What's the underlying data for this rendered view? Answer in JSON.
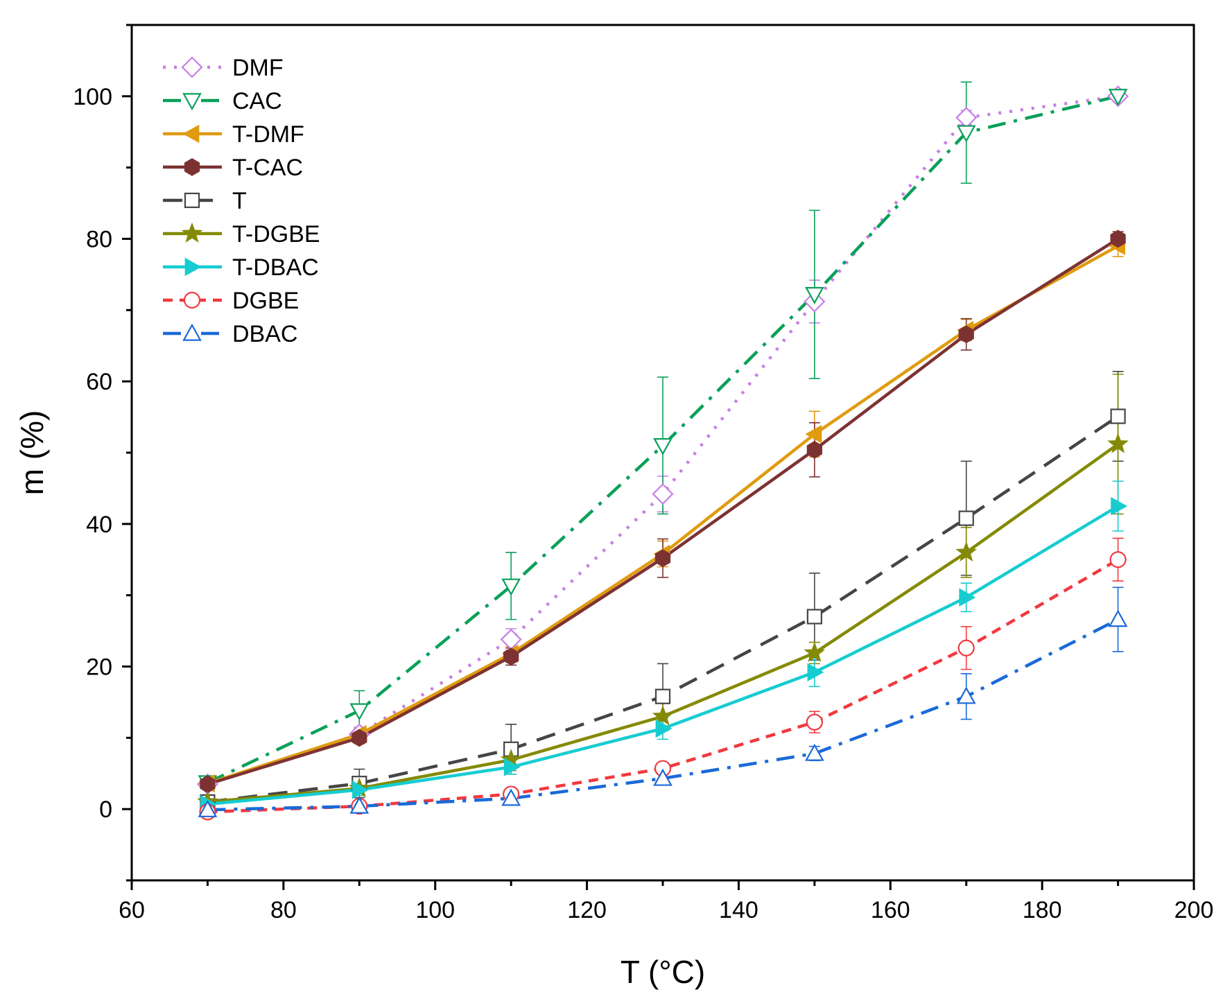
{
  "chart_data": {
    "type": "line",
    "xlabel": "T (°C)",
    "ylabel": "m (%)",
    "xlim": [
      60,
      200
    ],
    "ylim": [
      -10,
      110
    ],
    "xticks": [
      60,
      80,
      100,
      120,
      140,
      160,
      180,
      200
    ],
    "yticks": [
      0,
      20,
      40,
      60,
      80,
      100
    ],
    "x": [
      70,
      90,
      110,
      130,
      150,
      170,
      190
    ],
    "legend_position": "top-left",
    "grid": false,
    "series": [
      {
        "name": "DMF",
        "color": "#c77ee6",
        "dash": "dot",
        "marker": "diamond-open",
        "values": [
          3.5,
          10.5,
          23.8,
          44.2,
          71.2,
          97.0,
          100.0
        ],
        "errors": [
          0.5,
          1.0,
          1.5,
          2.5,
          3.0,
          1.0,
          0.5
        ]
      },
      {
        "name": "CAC",
        "color": "#0aa05a",
        "dash": "dashdot",
        "marker": "triangle-down-open",
        "values": [
          3.7,
          13.8,
          31.3,
          51.0,
          72.2,
          94.9,
          100.0
        ],
        "errors": [
          0.4,
          2.8,
          4.7,
          9.6,
          11.8,
          7.1,
          0.3
        ]
      },
      {
        "name": "T-DMF",
        "color": "#e09b0f",
        "dash": "solid",
        "marker": "triangle-left-filled",
        "values": [
          3.6,
          10.5,
          21.8,
          35.8,
          52.6,
          67.2,
          79.0
        ],
        "errors": [
          0.4,
          0.8,
          1.0,
          1.8,
          3.2,
          1.5,
          1.5
        ]
      },
      {
        "name": "T-CAC",
        "color": "#7d3232",
        "dash": "solid",
        "marker": "hexagon-filled",
        "values": [
          3.5,
          10.0,
          21.4,
          35.2,
          50.4,
          66.6,
          80.0
        ],
        "errors": [
          0.4,
          0.8,
          1.2,
          2.7,
          3.8,
          2.2,
          1.0
        ]
      },
      {
        "name": "T",
        "color": "#454545",
        "dash": "dash",
        "marker": "square-open",
        "values": [
          1.0,
          3.6,
          8.4,
          15.8,
          27.0,
          40.8,
          55.1
        ],
        "errors": [
          0.5,
          2.0,
          3.5,
          4.6,
          6.1,
          8.0,
          6.3
        ]
      },
      {
        "name": "T-DGBE",
        "color": "#848a05",
        "dash": "solid",
        "marker": "star-filled",
        "values": [
          1.0,
          2.9,
          6.9,
          13.0,
          21.9,
          36.0,
          51.2
        ],
        "errors": [
          0.4,
          1.0,
          1.5,
          2.0,
          1.5,
          3.5,
          9.8
        ]
      },
      {
        "name": "T-DBAC",
        "color": "#16ccd0",
        "dash": "solid",
        "marker": "triangle-right-filled",
        "values": [
          0.7,
          2.7,
          5.9,
          11.3,
          19.2,
          29.7,
          42.5
        ],
        "errors": [
          0.4,
          0.8,
          1.0,
          1.5,
          2.0,
          2.0,
          3.5
        ]
      },
      {
        "name": "DGBE",
        "color": "#f0393f",
        "dash": "shortdash",
        "marker": "circle-open",
        "values": [
          -0.4,
          0.4,
          2.1,
          5.7,
          12.2,
          22.6,
          35.0
        ],
        "errors": [
          0.8,
          0.6,
          0.6,
          0.8,
          1.5,
          3.0,
          3.0
        ]
      },
      {
        "name": "DBAC",
        "color": "#1a6ad8",
        "dash": "dashdot",
        "marker": "triangle-up-open",
        "values": [
          -0.1,
          0.4,
          1.5,
          4.3,
          7.8,
          15.8,
          26.6
        ],
        "errors": [
          0.6,
          0.5,
          0.5,
          0.6,
          1.0,
          3.2,
          4.5
        ]
      }
    ]
  }
}
